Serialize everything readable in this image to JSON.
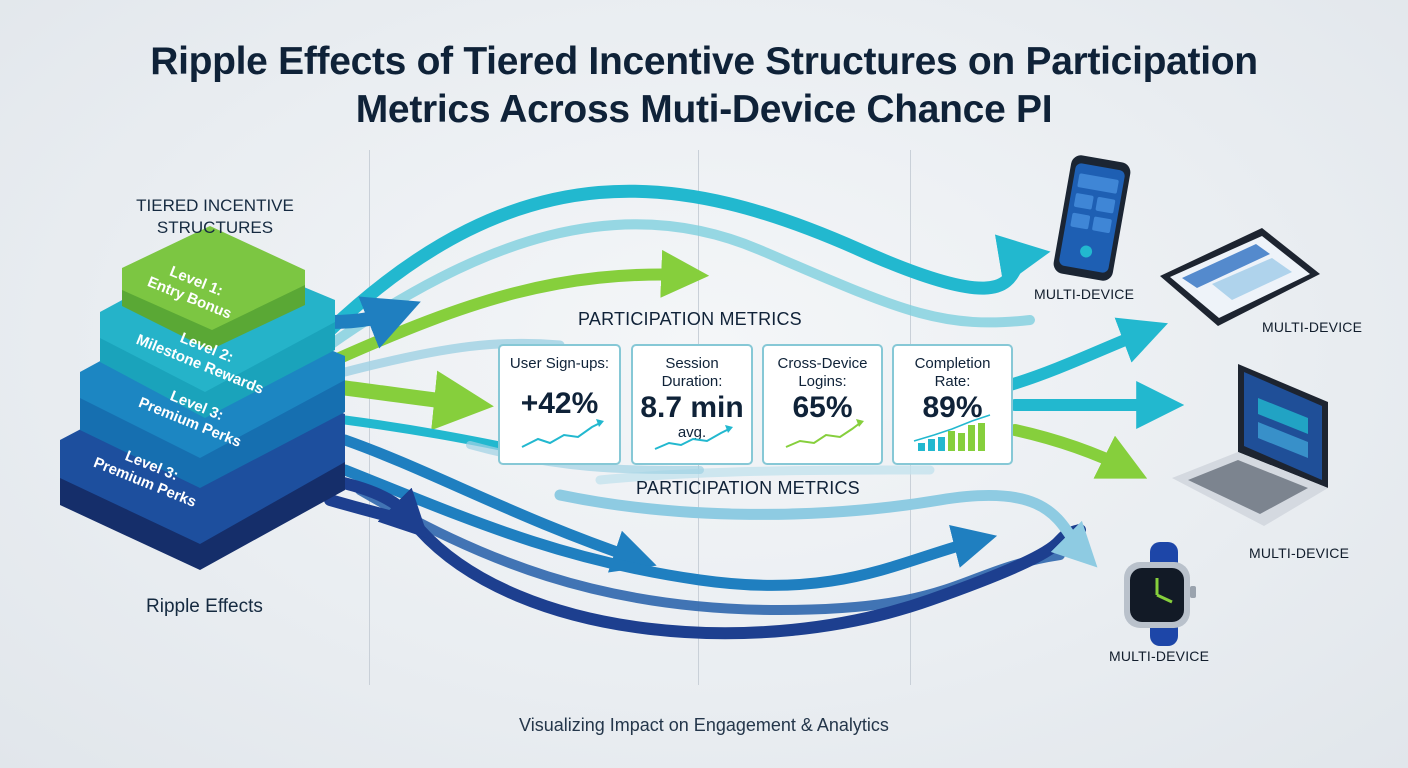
{
  "header": {
    "title_line1": "Ripple Effects of Tiered Incentive Structures on Participation",
    "title_line2": "Metrics Across Muti-Device Chance PI"
  },
  "left": {
    "heading_line1": "TIERED INCENTIVE",
    "heading_line2": "STRUCTURES",
    "footer": "Ripple Effects",
    "tiers": [
      {
        "line1": "Level 1:",
        "line2": "Entry Bonus",
        "color": "#7cc642"
      },
      {
        "line1": "Level 2:",
        "line2": "Milestone Rewards",
        "color": "#25b3c9"
      },
      {
        "line1": "Level 3:",
        "line2": "Premium Perks",
        "color": "#1c86c2"
      },
      {
        "line1": "Level 3:",
        "line2": "Premium Perks",
        "color": "#1d4f9e"
      }
    ]
  },
  "metrics": {
    "heading_top": "PARTICIPATION METRICS",
    "heading_bottom": "PARTICIPATION METRICS",
    "cards": [
      {
        "label": "User Sign-ups:",
        "label2": "",
        "value": "+42%",
        "note": "",
        "chart": "line"
      },
      {
        "label": "Session",
        "label2": "Duration:",
        "value": "8.7 min",
        "note": "avg.",
        "chart": "line"
      },
      {
        "label": "Cross-Device",
        "label2": "Logins:",
        "value": "65%",
        "note": "",
        "chart": "line"
      },
      {
        "label": "Completion",
        "label2": "Rate:",
        "value": "89%",
        "note": "",
        "chart": "bars"
      }
    ]
  },
  "devices": [
    {
      "type": "phone-icon",
      "label": "MULTI-DEVICE"
    },
    {
      "type": "tablet-icon",
      "label": "MULTI-DEVICE"
    },
    {
      "type": "laptop-icon",
      "label": "MULTI-DEVICE"
    },
    {
      "type": "watch-icon",
      "label": "MULTI-DEVICE"
    }
  ],
  "footer": {
    "subtitle": "Visualizing Impact on Engagement & Analytics"
  },
  "colors": {
    "navy": "#1d3f8f",
    "blue": "#1f7fc0",
    "teal": "#22b8cf",
    "light_blue": "#9fd1e4",
    "green": "#86cf3c"
  }
}
